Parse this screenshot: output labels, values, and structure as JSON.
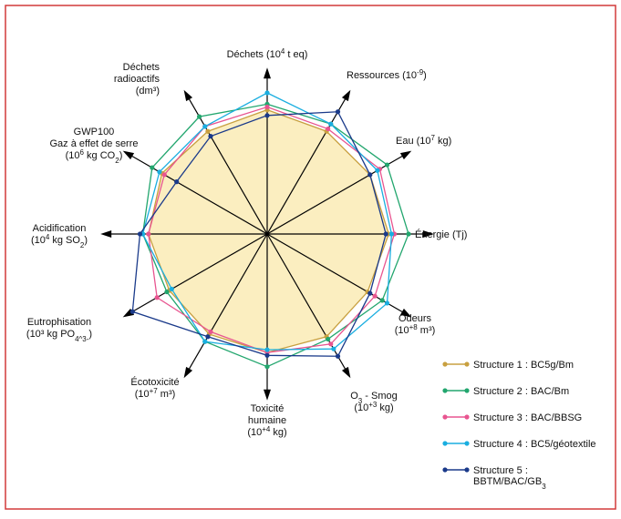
{
  "chart_data": {
    "type": "radar",
    "title": "",
    "axes": [
      {
        "label": [
          "Déchets (10^4 t eq)"
        ]
      },
      {
        "label": [
          "Ressources (10^-9)"
        ]
      },
      {
        "label": [
          "Eau (10^7 kg)"
        ]
      },
      {
        "label": [
          "Énergie (Tj)"
        ]
      },
      {
        "label": [
          "Odeurs",
          "(10^+8 m³)"
        ]
      },
      {
        "label": [
          "O_3 - Smog",
          "(10^+3 kg)"
        ]
      },
      {
        "label": [
          "Toxicité",
          "humaine",
          "(10^+4 kg)"
        ]
      },
      {
        "label": [
          "Écotoxicité",
          "(10^+7 m³)"
        ]
      },
      {
        "label": [
          "Eutrophisation",
          "(10³ kg PO_4^3-)"
        ]
      },
      {
        "label": [
          "Acidification",
          "(10^4 kg SO_2)"
        ]
      },
      {
        "label": [
          "GWP100",
          "Gaz à effet de serre",
          "(10^6 kg CO_2)"
        ]
      },
      {
        "label": [
          "Déchets",
          "radioactifs",
          "(dm³)"
        ]
      }
    ],
    "series": [
      {
        "name": "Structure 1 : BC5g/Bm",
        "color": "#c8a040",
        "values": [
          0.88,
          0.84,
          0.84,
          0.86,
          0.82,
          0.84,
          0.84,
          0.82,
          0.8,
          0.84,
          0.86,
          0.84
        ]
      },
      {
        "name": "Structure 2 : BAC/Bm",
        "color": "#22a66e",
        "values": [
          0.92,
          0.9,
          0.98,
          1.0,
          0.94,
          0.86,
          0.94,
          0.88,
          0.82,
          0.88,
          0.94,
          0.96
        ]
      },
      {
        "name": "Structure 3 : BAC/BBSG",
        "color": "#e85590",
        "values": [
          0.9,
          0.86,
          0.92,
          0.9,
          0.88,
          0.9,
          0.84,
          0.8,
          0.9,
          0.84,
          0.84,
          0.88
        ]
      },
      {
        "name": "Structure 4 : BC5/géotextile",
        "color": "#1aaee0",
        "values": [
          1.0,
          0.9,
          0.9,
          0.88,
          0.98,
          0.94,
          0.82,
          0.88,
          0.78,
          0.88,
          0.88,
          0.88
        ]
      },
      {
        "name": "Structure 5 : BBTM/BAC/GB_3",
        "color": "#1a3a8a",
        "values": [
          0.84,
          1.0,
          0.84,
          0.84,
          0.84,
          1.0,
          0.86,
          0.84,
          1.1,
          0.9,
          0.74,
          0.8
        ]
      }
    ],
    "legend_position": "bottom-right",
    "grid": false
  },
  "style": {
    "frame_color": "#d23a3a",
    "fill_color": "#fbeec0",
    "fill_stroke": "#e8c84a",
    "axis_color": "#000000"
  }
}
